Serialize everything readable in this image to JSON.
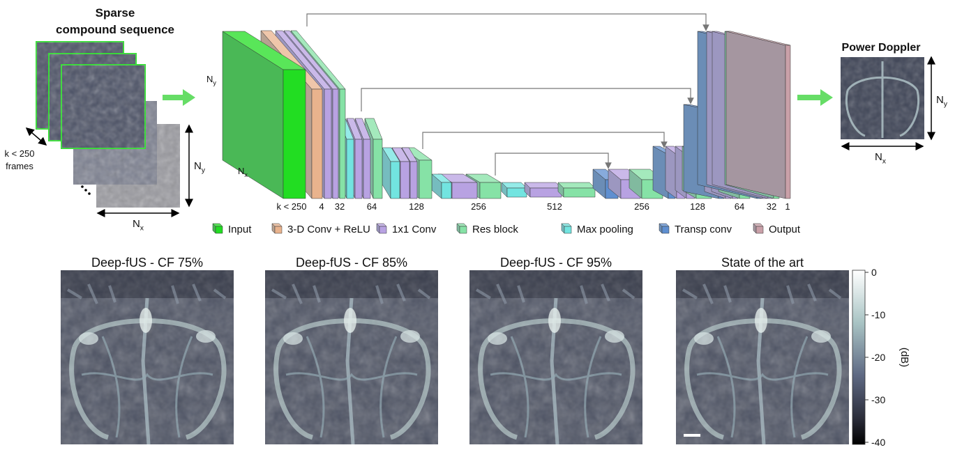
{
  "input_panel": {
    "title": [
      "Sparse",
      "compound sequence"
    ],
    "frames_label": [
      "k < 250",
      "frames"
    ],
    "nx": {
      "base": "N",
      "sub": "x"
    },
    "ny": {
      "base": "N",
      "sub": "y"
    }
  },
  "network": {
    "ny": {
      "base": "N",
      "sub": "y"
    },
    "nx": {
      "base": "N",
      "sub": "x"
    },
    "channels": [
      "k < 250",
      "4",
      "32",
      "64",
      "128",
      "256",
      "512",
      "256",
      "128",
      "64",
      "32",
      "1"
    ],
    "legend": [
      {
        "label": "Input",
        "color": "#22dd22"
      },
      {
        "label": "3-D Conv + ReLU",
        "color": "#e9b38d"
      },
      {
        "label": "1x1 Conv",
        "color": "#b8a2e2"
      },
      {
        "label": "Res block",
        "color": "#86e2a6"
      },
      {
        "label": "Max pooling",
        "color": "#72e4e0"
      },
      {
        "label": "Transp conv",
        "color": "#5f8fd0"
      },
      {
        "label": "Output",
        "color": "#c9a0a8"
      }
    ]
  },
  "output_panel": {
    "title": "Power Doppler",
    "nx": {
      "base": "N",
      "sub": "x"
    },
    "ny": {
      "base": "N",
      "sub": "y"
    }
  },
  "results": {
    "panels": [
      "Deep-fUS - CF 75%",
      "Deep-fUS - CF 85%",
      "Deep-fUS - CF 95%",
      "State of the art"
    ],
    "colorbar": {
      "label": "(dB)",
      "ticks": [
        0,
        -10,
        -20,
        -30,
        -40
      ]
    }
  }
}
